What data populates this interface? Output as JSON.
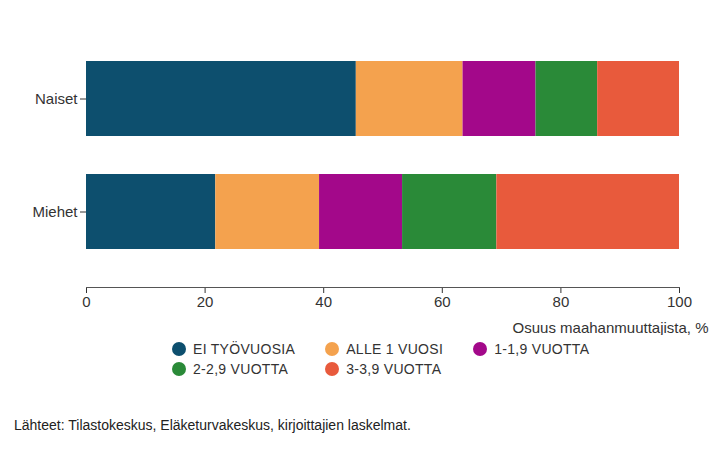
{
  "chart_data": {
    "type": "bar",
    "orientation": "horizontal",
    "stacked": true,
    "categories": [
      "Naiset",
      "Miehet"
    ],
    "series": [
      {
        "name": "EI TYÖVUOSIA",
        "color": "#0d4f6e",
        "values": [
          45.5,
          21.8
        ]
      },
      {
        "name": "ALLE 1 VUOSI",
        "color": "#f4a24e",
        "values": [
          18,
          17.5
        ]
      },
      {
        "name": "1-1,9 VUOTTA",
        "color": "#a3088a",
        "values": [
          12.3,
          14
        ]
      },
      {
        "name": "2-2,9 VUOTTA",
        "color": "#2a8a38",
        "values": [
          10.4,
          15.9
        ]
      },
      {
        "name": "3-3,9 VUOTTA",
        "color": "#e85a3c",
        "values": [
          13.8,
          30.8
        ]
      }
    ],
    "xlabel": "Osuus maahanmuuttajista, %",
    "xlim": [
      0,
      100
    ],
    "xticks": [
      0,
      20,
      40,
      60,
      80,
      100
    ],
    "grid": false,
    "legend": "bottom",
    "caption": "Lähteet: Tilastokeskus, Eläketurvakeskus, kirjoittajien laskelmat."
  }
}
